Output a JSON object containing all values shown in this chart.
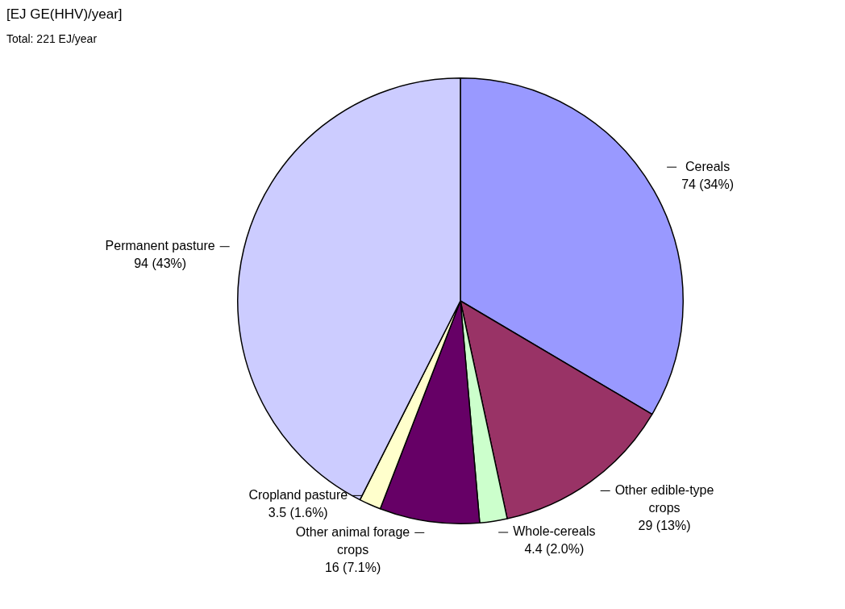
{
  "chart_data": {
    "type": "pie",
    "title": "[EJ GE(HHV)/year]",
    "subtitle": "Total: 221 EJ/year",
    "categories": [
      "Cereals",
      "Other edible-type crops",
      "Whole-cereals",
      "Other animal forage crops",
      "Cropland pasture",
      "Permanent pasture"
    ],
    "values": [
      74,
      29,
      4.4,
      16,
      3.5,
      94
    ],
    "colors": [
      "#9999ff",
      "#993366",
      "#ccffcc",
      "#660066",
      "#ffffcc",
      "#ccccff"
    ],
    "value_labels": [
      "74 (34%)",
      "29 (13%)",
      "4.4 (2.0%)",
      "16 (7.1%)",
      "3.5 (1.6%)",
      "94 (43%)"
    ]
  }
}
